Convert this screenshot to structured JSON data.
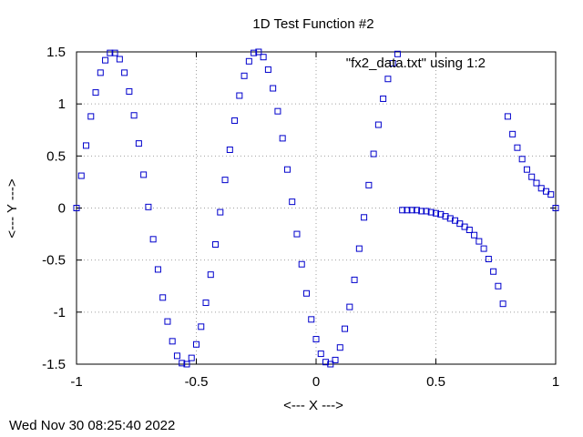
{
  "footer_timestamp": "Wed Nov 30 08:25:40 2022",
  "chart_data": {
    "type": "scatter",
    "title": "1D Test Function #2",
    "xlabel": "<--- X --->",
    "ylabel": "<--- Y --->",
    "xlim": [
      -1,
      1
    ],
    "ylim": [
      -1.5,
      1.5
    ],
    "grid": true,
    "xticks": [
      -1,
      -0.5,
      0,
      0.5,
      1
    ],
    "xtick_labels": [
      "-1",
      "-0.5",
      "0",
      "0.5",
      "1"
    ],
    "yticks": [
      -1.5,
      -1,
      -0.5,
      0,
      0.5,
      1,
      1.5
    ],
    "ytick_labels": [
      "-1.5",
      "-1",
      "-0.5",
      "0",
      "0.5",
      "1",
      "1.5"
    ],
    "legend_position": "top-right",
    "marker_color": "#0000cc",
    "marker": "open-square",
    "series": [
      {
        "name": "\"fx2_data.txt\" using 1:2",
        "x": [
          -1.0,
          -0.98,
          -0.96,
          -0.94,
          -0.92,
          -0.9,
          -0.88,
          -0.86,
          -0.84,
          -0.82,
          -0.8,
          -0.78,
          -0.76,
          -0.74,
          -0.72,
          -0.7,
          -0.68,
          -0.66,
          -0.64,
          -0.62,
          -0.6,
          -0.58,
          -0.56,
          -0.54,
          -0.52,
          -0.5,
          -0.48,
          -0.46,
          -0.44,
          -0.42,
          -0.4,
          -0.38,
          -0.36,
          -0.34,
          -0.32,
          -0.3,
          -0.28,
          -0.26,
          -0.24,
          -0.22,
          -0.2,
          -0.18,
          -0.16,
          -0.14,
          -0.12,
          -0.1,
          -0.08,
          -0.06,
          -0.04,
          -0.02,
          0.0,
          0.02,
          0.04,
          0.06,
          0.08,
          0.1,
          0.12,
          0.14,
          0.16,
          0.18,
          0.2,
          0.22,
          0.24,
          0.26,
          0.28,
          0.3,
          0.32,
          0.34,
          0.36,
          0.38,
          0.4,
          0.42,
          0.44,
          0.46,
          0.48,
          0.5,
          0.52,
          0.54,
          0.56,
          0.58,
          0.6,
          0.62,
          0.64,
          0.66,
          0.68,
          0.7,
          0.72,
          0.74,
          0.76,
          0.78,
          0.8,
          0.82,
          0.84,
          0.86,
          0.88,
          0.9,
          0.92,
          0.94,
          0.96,
          0.98,
          1.0
        ],
        "y": [
          0.0,
          0.31,
          0.6,
          0.88,
          1.11,
          1.3,
          1.42,
          1.49,
          1.49,
          1.43,
          1.3,
          1.12,
          0.89,
          0.62,
          0.32,
          0.01,
          -0.3,
          -0.59,
          -0.86,
          -1.09,
          -1.28,
          -1.42,
          -1.49,
          -1.5,
          -1.44,
          -1.31,
          -1.14,
          -0.91,
          -0.64,
          -0.35,
          -0.04,
          0.27,
          0.56,
          0.84,
          1.08,
          1.27,
          1.41,
          1.49,
          1.5,
          1.45,
          1.33,
          1.15,
          0.93,
          0.67,
          0.37,
          0.06,
          -0.25,
          -0.54,
          -0.82,
          -1.07,
          -1.26,
          -1.4,
          -1.48,
          -1.5,
          -1.46,
          -1.34,
          -1.16,
          -0.95,
          -0.69,
          -0.39,
          -0.09,
          0.22,
          0.52,
          0.8,
          1.05,
          1.24,
          1.39,
          1.48,
          -0.02,
          -0.02,
          -0.02,
          -0.02,
          -0.03,
          -0.03,
          -0.04,
          -0.05,
          -0.06,
          -0.08,
          -0.1,
          -0.12,
          -0.15,
          -0.18,
          -0.21,
          -0.26,
          -0.32,
          -0.39,
          -0.49,
          -0.61,
          -0.75,
          -0.92,
          0.88,
          0.71,
          0.58,
          0.47,
          0.37,
          0.3,
          0.24,
          0.19,
          0.16,
          0.13,
          0.0
        ]
      }
    ]
  }
}
